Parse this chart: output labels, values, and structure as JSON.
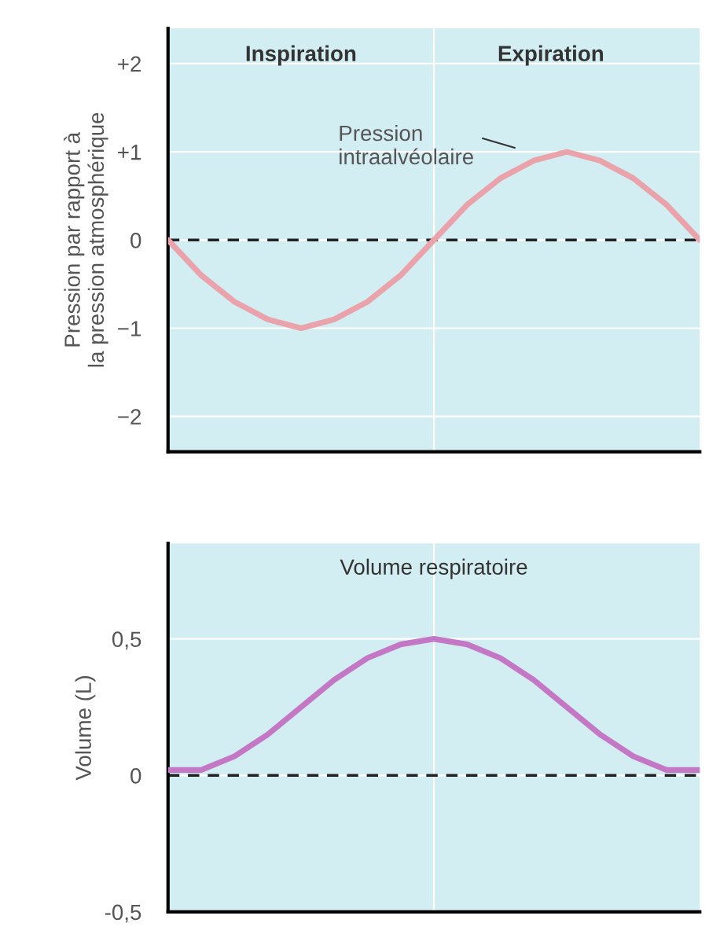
{
  "chart_data": [
    {
      "type": "line",
      "categories": [
        null,
        null,
        null,
        null,
        null,
        null,
        null,
        null,
        null,
        null,
        null,
        null,
        null,
        null,
        null,
        null,
        null
      ],
      "series": [
        {
          "color": "#eba3ab",
          "values": [
            0,
            -0.4,
            -0.7,
            -0.9,
            -1,
            -0.9,
            -0.7,
            -0.4,
            0,
            0.4,
            0.7,
            0.9,
            1,
            0.9,
            0.7,
            0.4,
            0
          ]
        }
      ],
      "ylabel": "Pression par rapport à\nla pression atmosphérique",
      "ylim": [
        -2.4,
        2.4
      ],
      "yticks": [
        {
          "value": 2,
          "label": "+2"
        },
        {
          "value": 1,
          "label": "+1"
        },
        0,
        {
          "value": -1,
          "label": "−1"
        },
        {
          "value": -2,
          "label": "−2"
        }
      ],
      "annotations": [
        "Inspiration",
        "Expiration",
        "Pression\nintraalvéolaire"
      ],
      "ref_lines": [
        {
          "axis": "y",
          "value": 0,
          "color": "#222222",
          "line_style": "dashed"
        }
      ],
      "grid": "y",
      "tick_labels": "y"
    },
    {
      "type": "line",
      "categories": [
        null,
        null,
        null,
        null,
        null,
        null,
        null,
        null,
        null,
        null,
        null,
        null,
        null,
        null,
        null,
        null,
        null
      ],
      "series": [
        {
          "color": "#c377c4",
          "values": [
            0.02,
            0.02,
            0.07,
            0.15,
            0.25,
            0.35,
            0.43,
            0.48,
            0.5,
            0.48,
            0.43,
            0.35,
            0.25,
            0.15,
            0.07,
            0.02,
            0.02
          ]
        }
      ],
      "title": "Volume respiratoire",
      "ylabel": "Volume (L)",
      "ylim": [
        -0.5,
        0.85
      ],
      "yticks": [
        {
          "value": 0.5,
          "label": "0,5"
        },
        0,
        {
          "value": -0.5,
          "label": "-0,5"
        }
      ],
      "ref_lines": [
        {
          "axis": "y",
          "value": 0,
          "color": "#222222",
          "line_style": "dashed"
        }
      ],
      "grid": "y",
      "tick_labels": "y"
    }
  ]
}
